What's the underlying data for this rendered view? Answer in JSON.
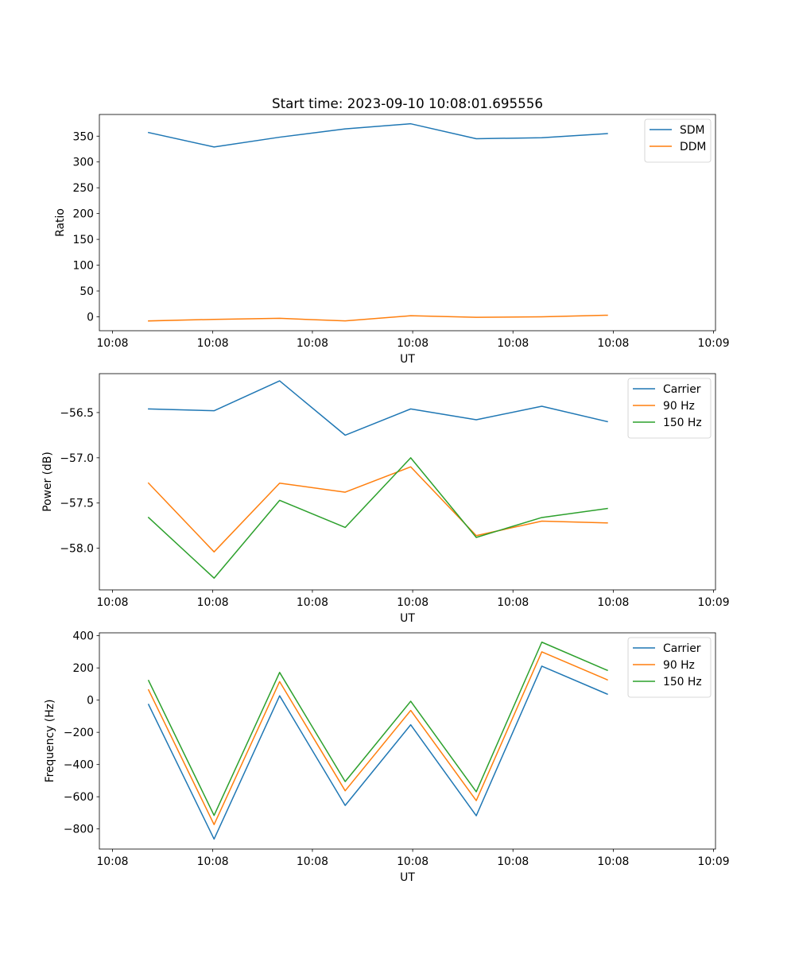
{
  "chart_data": [
    {
      "type": "line",
      "title": "Start time: 2023-09-10 10:08:01.695556",
      "xlabel": "UT",
      "ylabel": "Ratio",
      "x": [
        0,
        1,
        2,
        3,
        4,
        5,
        6,
        7
      ],
      "xlim": [
        -0.75,
        8.65
      ],
      "xticks": [
        {
          "value": -0.55,
          "label": "10:08"
        },
        {
          "value": 0.98,
          "label": "10:08"
        },
        {
          "value": 2.5,
          "label": "10:08"
        },
        {
          "value": 4.03,
          "label": "10:08"
        },
        {
          "value": 5.56,
          "label": "10:08"
        },
        {
          "value": 7.09,
          "label": "10:08"
        },
        {
          "value": 8.62,
          "label": "10:09"
        }
      ],
      "ylim": [
        -27,
        392
      ],
      "yticks": [
        0,
        50,
        100,
        150,
        200,
        250,
        300,
        350
      ],
      "legend_position": "top-right",
      "series": [
        {
          "name": "SDM",
          "color": "#1f77b4",
          "values": [
            357,
            329,
            348,
            364,
            374,
            345,
            347,
            355
          ]
        },
        {
          "name": "DDM",
          "color": "#ff7f0e",
          "values": [
            -8,
            -5,
            -3,
            -8,
            2,
            -1,
            0,
            3
          ]
        }
      ]
    },
    {
      "type": "line",
      "title": "",
      "xlabel": "UT",
      "ylabel": "Power (dB)",
      "x": [
        0,
        1,
        2,
        3,
        4,
        5,
        6,
        7
      ],
      "xlim": [
        -0.75,
        8.65
      ],
      "xticks": [
        {
          "value": -0.55,
          "label": "10:08"
        },
        {
          "value": 0.98,
          "label": "10:08"
        },
        {
          "value": 2.5,
          "label": "10:08"
        },
        {
          "value": 4.03,
          "label": "10:08"
        },
        {
          "value": 5.56,
          "label": "10:08"
        },
        {
          "value": 7.09,
          "label": "10:08"
        },
        {
          "value": 8.62,
          "label": "10:09"
        }
      ],
      "ylim": [
        -58.46,
        -56.07
      ],
      "yticks": [
        {
          "value": -56.5,
          "label": "−56.5"
        },
        {
          "value": -57.0,
          "label": "−57.0"
        },
        {
          "value": -57.5,
          "label": "−57.5"
        },
        {
          "value": -58.0,
          "label": "−58.0"
        }
      ],
      "legend_position": "top-right",
      "series": [
        {
          "name": "Carrier",
          "color": "#1f77b4",
          "values": [
            -56.46,
            -56.48,
            -56.15,
            -56.75,
            -56.46,
            -56.58,
            -56.43,
            -56.6
          ]
        },
        {
          "name": "90 Hz",
          "color": "#ff7f0e",
          "values": [
            -57.28,
            -58.04,
            -57.28,
            -57.38,
            -57.1,
            -57.86,
            -57.7,
            -57.72
          ]
        },
        {
          "name": "150 Hz",
          "color": "#2ca02c",
          "values": [
            -57.66,
            -58.33,
            -57.47,
            -57.77,
            -57.0,
            -57.88,
            -57.66,
            -57.56
          ]
        }
      ]
    },
    {
      "type": "line",
      "title": "",
      "xlabel": "UT",
      "ylabel": "Frequency (Hz)",
      "x": [
        0,
        1,
        2,
        3,
        4,
        5,
        6,
        7
      ],
      "xlim": [
        -0.75,
        8.65
      ],
      "xticks": [
        {
          "value": -0.55,
          "label": "10:08"
        },
        {
          "value": 0.98,
          "label": "10:08"
        },
        {
          "value": 2.5,
          "label": "10:08"
        },
        {
          "value": 4.03,
          "label": "10:08"
        },
        {
          "value": 5.56,
          "label": "10:08"
        },
        {
          "value": 7.09,
          "label": "10:08"
        },
        {
          "value": 8.62,
          "label": "10:09"
        }
      ],
      "ylim": [
        -925,
        418
      ],
      "yticks": [
        {
          "value": 400,
          "label": "400"
        },
        {
          "value": 200,
          "label": "200"
        },
        {
          "value": 0,
          "label": "0"
        },
        {
          "value": -200,
          "label": "−200"
        },
        {
          "value": -400,
          "label": "−400"
        },
        {
          "value": -600,
          "label": "−600"
        },
        {
          "value": -800,
          "label": "−800"
        }
      ],
      "legend_position": "top-right",
      "series": [
        {
          "name": "Carrier",
          "color": "#1f77b4",
          "values": [
            -27,
            -863,
            27,
            -654,
            -153,
            -718,
            211,
            37
          ]
        },
        {
          "name": "90 Hz",
          "color": "#ff7f0e",
          "values": [
            64,
            -773,
            115,
            -563,
            -64,
            -624,
            300,
            126
          ]
        },
        {
          "name": "150 Hz",
          "color": "#2ca02c",
          "values": [
            122,
            -716,
            172,
            -506,
            -7,
            -569,
            360,
            185
          ]
        }
      ]
    }
  ]
}
